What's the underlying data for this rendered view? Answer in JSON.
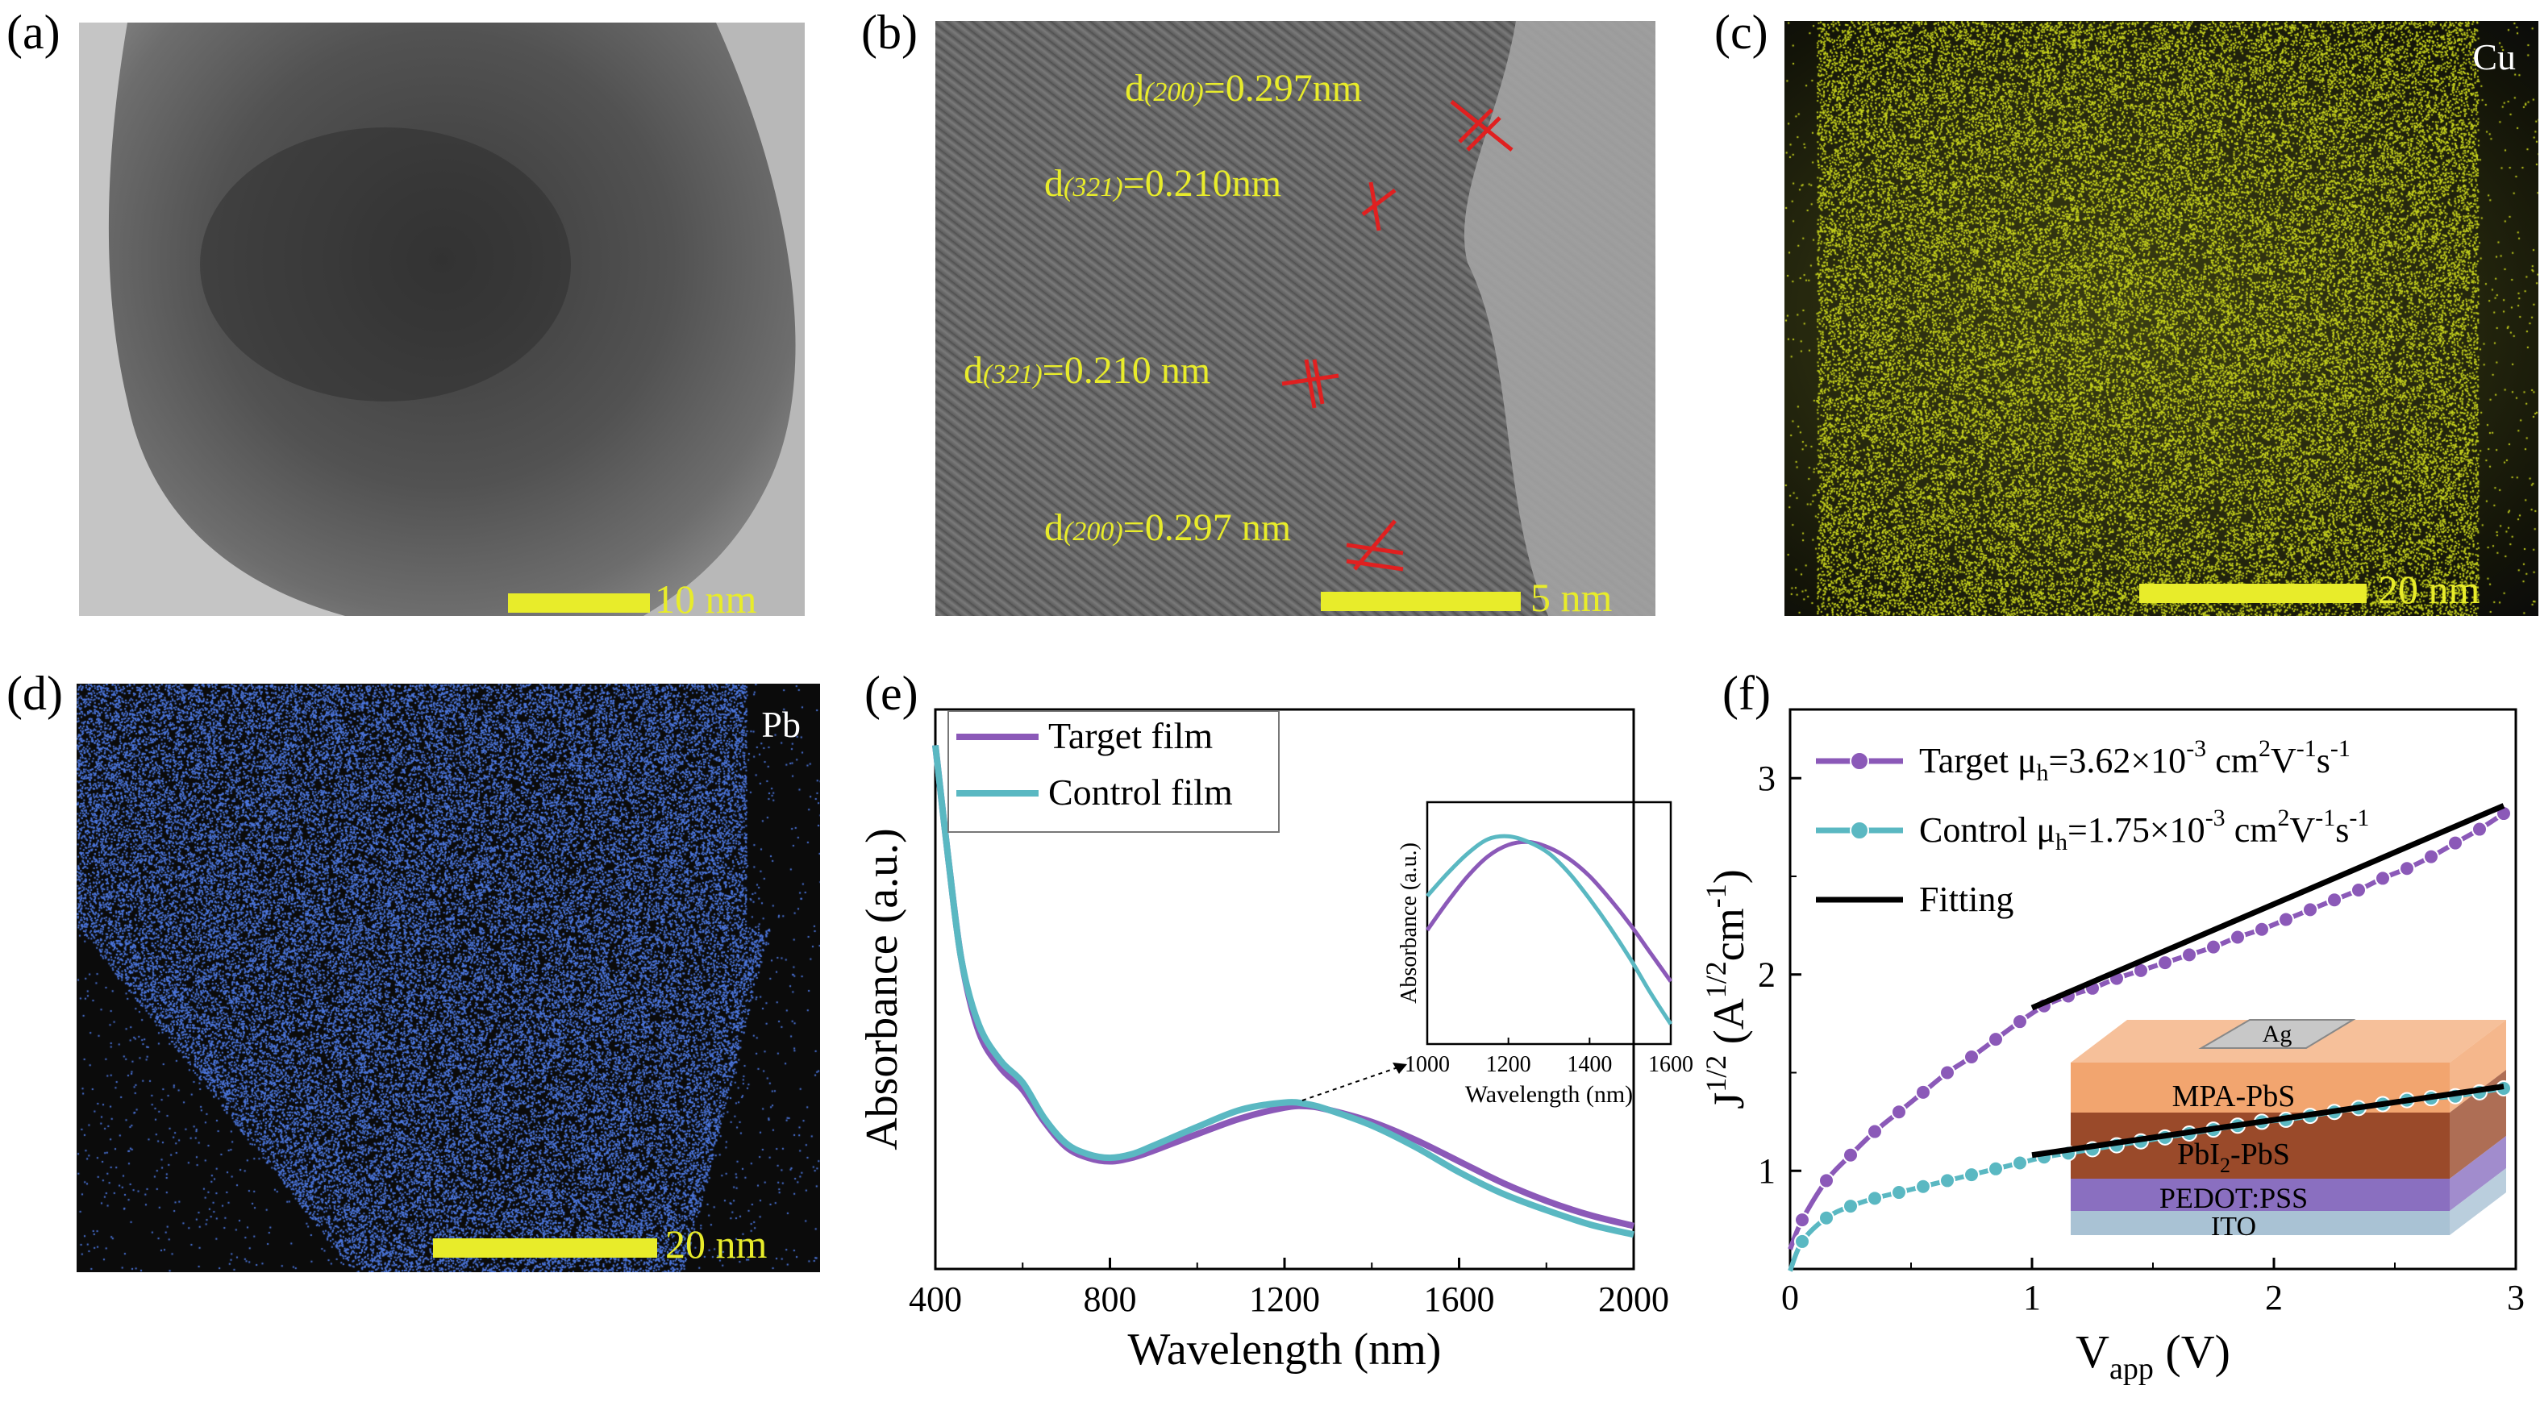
{
  "panels": {
    "a": {
      "label": "(a)",
      "scale": "10 nm"
    },
    "b": {
      "label": "(b)",
      "scale": "5 nm",
      "annotations": [
        {
          "d": "d",
          "hkl": "(200)",
          "value": "=0.297nm"
        },
        {
          "d": "d",
          "hkl": "(321)",
          "value": "=0.210nm"
        },
        {
          "d": "d",
          "hkl": "(321)",
          "value": "=0.210 nm"
        },
        {
          "d": "d",
          "hkl": "(200)",
          "value": "=0.297 nm"
        }
      ]
    },
    "c": {
      "label": "(c)",
      "scale": "20 nm",
      "element": "Cu",
      "dot_color": "#c8d41e"
    },
    "d": {
      "label": "(d)",
      "scale": "20 nm",
      "element": "Pb",
      "dot_color": "#4d78e0"
    },
    "e": {
      "label": "(e)"
    },
    "f": {
      "label": "(f)"
    }
  },
  "chart_data": [
    {
      "id": "e",
      "type": "line",
      "xlabel": "Wavelength (nm)",
      "ylabel": "Absorbance (a.u.)",
      "xlim": [
        400,
        2000
      ],
      "xticks": [
        400,
        800,
        1200,
        1600,
        2000
      ],
      "legend": "top-left",
      "series": [
        {
          "name": "Target film",
          "color": "#8b59b8",
          "x": [
            400,
            430,
            460,
            500,
            550,
            600,
            650,
            700,
            750,
            800,
            850,
            900,
            1000,
            1100,
            1200,
            1250,
            1300,
            1400,
            1500,
            1600,
            1700,
            1800,
            1900,
            2000
          ],
          "y": [
            0.88,
            0.72,
            0.58,
            0.48,
            0.43,
            0.4,
            0.355,
            0.32,
            0.305,
            0.3,
            0.305,
            0.315,
            0.338,
            0.36,
            0.375,
            0.377,
            0.372,
            0.355,
            0.33,
            0.3,
            0.27,
            0.245,
            0.225,
            0.21
          ]
        },
        {
          "name": "Control film",
          "color": "#5ab8c2",
          "x": [
            400,
            430,
            460,
            500,
            550,
            600,
            650,
            700,
            750,
            800,
            850,
            900,
            1000,
            1100,
            1200,
            1250,
            1300,
            1400,
            1500,
            1600,
            1700,
            1800,
            1900,
            2000
          ],
          "y": [
            0.88,
            0.72,
            0.58,
            0.49,
            0.44,
            0.41,
            0.36,
            0.325,
            0.31,
            0.305,
            0.31,
            0.322,
            0.348,
            0.372,
            0.382,
            0.38,
            0.372,
            0.35,
            0.32,
            0.285,
            0.255,
            0.232,
            0.212,
            0.198
          ]
        }
      ],
      "inset": {
        "xlabel": "Wavelength (nm)",
        "ylabel": "Absorbance (a.u.)",
        "xlim": [
          1000,
          1600
        ],
        "xticks": [
          1000,
          1200,
          1400,
          1600
        ],
        "series": [
          {
            "name": "Target film",
            "color": "#8b59b8",
            "x": [
              1000,
              1050,
              1100,
              1150,
              1200,
              1250,
              1300,
              1350,
              1400,
              1450,
              1500,
              1550,
              1600
            ],
            "y": [
              0.55,
              0.65,
              0.74,
              0.81,
              0.85,
              0.86,
              0.84,
              0.8,
              0.74,
              0.66,
              0.57,
              0.47,
              0.37
            ]
          },
          {
            "name": "Control film",
            "color": "#5ab8c2",
            "x": [
              1000,
              1050,
              1100,
              1150,
              1200,
              1250,
              1300,
              1350,
              1400,
              1450,
              1500,
              1550,
              1600
            ],
            "y": [
              0.67,
              0.75,
              0.82,
              0.87,
              0.88,
              0.86,
              0.82,
              0.75,
              0.66,
              0.56,
              0.45,
              0.33,
              0.22
            ]
          }
        ]
      }
    },
    {
      "id": "f",
      "type": "line",
      "xlabel": "V",
      "xlabel_sub": "app",
      "xlabel_unit": " (V)",
      "ylabel": "J",
      "ylabel_sup": "1/2",
      "ylabel_unit": "(A",
      "ylabel_unit_sup": "1/2",
      "ylabel_unit2": "cm",
      "ylabel_unit2_sup": "-1",
      "ylabel_close": ")",
      "xlim": [
        0,
        3
      ],
      "ylim": [
        0.5,
        3.35
      ],
      "xticks": [
        0,
        1,
        2,
        3
      ],
      "yticks": [
        1,
        2,
        3
      ],
      "legend": "top-left",
      "series": [
        {
          "name": "Target",
          "mobility": "μ",
          "mobility_sub": "h",
          "mobility_val": "=3.62×10",
          "exp": "-3",
          "unit": "cm",
          "unit_sup": "2",
          "unit2": "V",
          "unit2_sup": "-1",
          "unit3": "s",
          "unit3_sup": "-1",
          "color": "#8b59b8",
          "x": [
            0.05,
            0.15,
            0.25,
            0.35,
            0.45,
            0.55,
            0.65,
            0.75,
            0.85,
            0.95,
            1.05,
            1.15,
            1.25,
            1.35,
            1.45,
            1.55,
            1.65,
            1.75,
            1.85,
            1.95,
            2.05,
            2.15,
            2.25,
            2.35,
            2.45,
            2.55,
            2.65,
            2.75,
            2.85,
            2.95
          ],
          "y": [
            0.75,
            0.95,
            1.08,
            1.2,
            1.3,
            1.4,
            1.5,
            1.58,
            1.67,
            1.76,
            1.84,
            1.89,
            1.93,
            1.98,
            2.02,
            2.06,
            2.1,
            2.14,
            2.19,
            2.23,
            2.28,
            2.33,
            2.38,
            2.43,
            2.49,
            2.54,
            2.6,
            2.67,
            2.74,
            2.82
          ]
        },
        {
          "name": "Control",
          "mobility": "μ",
          "mobility_sub": "h",
          "mobility_val": "=1.75×10",
          "exp": "-3",
          "unit": "cm",
          "unit_sup": "2",
          "unit2": "V",
          "unit2_sup": "-1",
          "unit3": "s",
          "unit3_sup": "-1",
          "color": "#5ab8c2",
          "x": [
            0.05,
            0.15,
            0.25,
            0.35,
            0.45,
            0.55,
            0.65,
            0.75,
            0.85,
            0.95,
            1.05,
            1.15,
            1.25,
            1.35,
            1.45,
            1.55,
            1.65,
            1.75,
            1.85,
            1.95,
            2.05,
            2.15,
            2.25,
            2.35,
            2.45,
            2.55,
            2.65,
            2.75,
            2.85,
            2.95
          ],
          "y": [
            0.64,
            0.76,
            0.82,
            0.86,
            0.89,
            0.92,
            0.95,
            0.98,
            1.01,
            1.04,
            1.07,
            1.09,
            1.11,
            1.13,
            1.15,
            1.17,
            1.19,
            1.21,
            1.23,
            1.25,
            1.26,
            1.28,
            1.3,
            1.32,
            1.34,
            1.36,
            1.37,
            1.38,
            1.4,
            1.42
          ]
        },
        {
          "name": "Fitting",
          "color": "#000000",
          "lines": [
            {
              "x": [
                1.0,
                2.95
              ],
              "y": [
                1.83,
                2.86
              ]
            },
            {
              "x": [
                1.0,
                2.95
              ],
              "y": [
                1.08,
                1.43
              ]
            }
          ]
        }
      ],
      "inset_device": {
        "layers": [
          "Ag",
          "MPA-PbS",
          "PbI",
          "2",
          "-PbS",
          "PEDOT:PSS",
          "ITO"
        ]
      }
    }
  ]
}
